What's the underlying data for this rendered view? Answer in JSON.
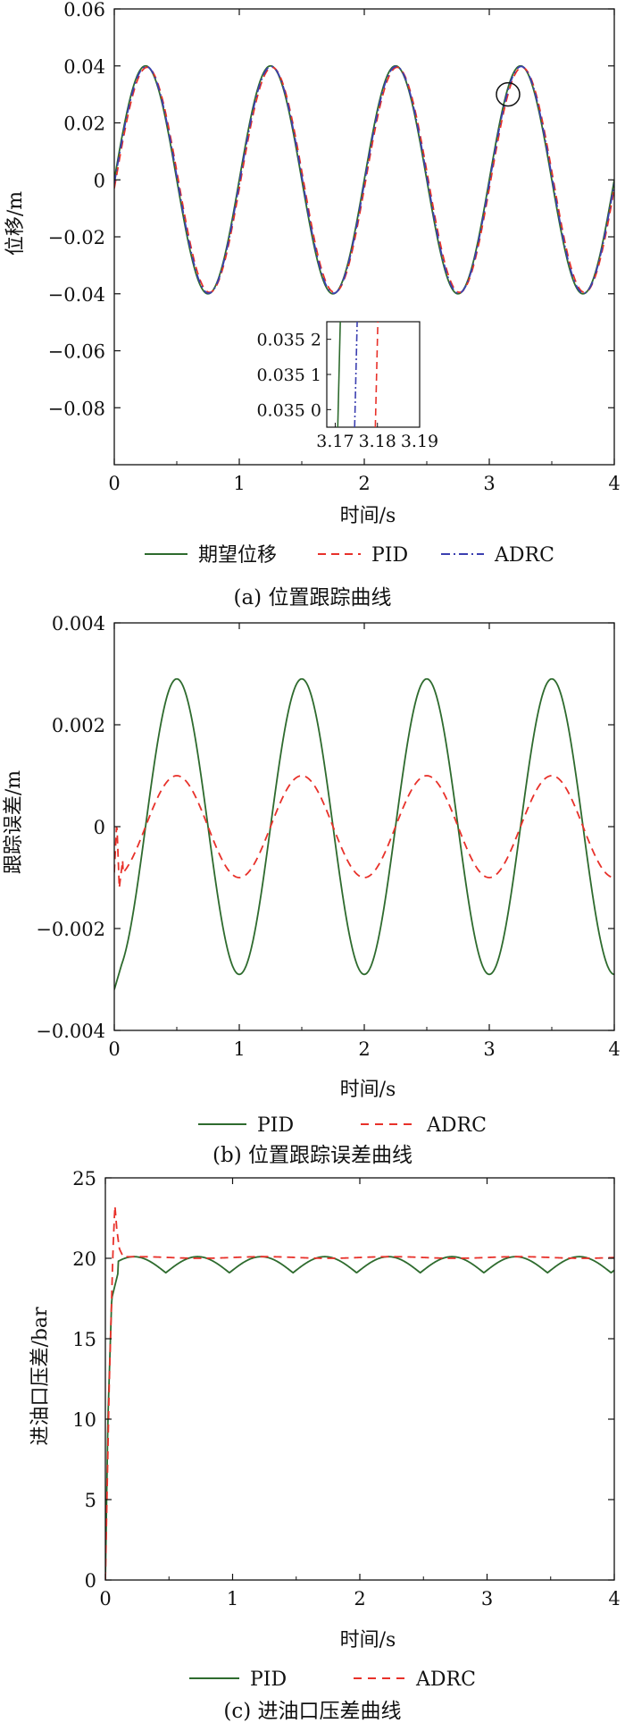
{
  "chart_data": [
    {
      "type": "line",
      "caption": "(a) 位置跟踪曲线",
      "xlabel": "时间/s",
      "ylabel": "位移/m",
      "xlim": [
        0,
        4
      ],
      "ylim": [
        -0.1,
        0.06
      ],
      "xticks": [
        "0",
        "1",
        "2",
        "3",
        "4"
      ],
      "yticks": [
        "0.06",
        "0.04",
        "0.02",
        "0",
        "−0.02",
        "−0.04",
        "−0.06",
        "−0.08"
      ],
      "ytick_values": [
        0.06,
        0.04,
        0.02,
        0,
        -0.02,
        -0.04,
        -0.06,
        -0.08
      ],
      "series": [
        {
          "name": "期望位移",
          "color": "#2e6b2e",
          "style": "solid",
          "shape": "sine",
          "amplitude": 0.04,
          "period": 1.0,
          "offset": 0
        },
        {
          "name": "PID",
          "color": "#e8312a",
          "style": "dashed",
          "shape": "sine",
          "amplitude": 0.0395,
          "period": 1.0,
          "phase_shift": 0.012,
          "offset": 0
        },
        {
          "name": "ADRC",
          "color": "#3b3fb0",
          "style": "dashdot",
          "shape": "sine",
          "amplitude": 0.0398,
          "period": 1.0,
          "phase_shift": 0.005,
          "offset": 0
        }
      ],
      "legend_position": "bottom",
      "annotation": {
        "type": "circle",
        "x": 3.15,
        "y": 0.03
      },
      "inset": {
        "xticks": [
          "3.17",
          "3.18",
          "3.19"
        ],
        "xtick_values": [
          3.17,
          3.18,
          3.19
        ],
        "yticks": [
          "0.035 2",
          "0.035 1",
          "0.035 0"
        ],
        "ytick_values": [
          0.03552,
          0.03551,
          0.0355
        ],
        "xlim": [
          3.168,
          3.19
        ],
        "ylim": [
          0.035495,
          0.035525
        ],
        "lines": [
          {
            "series": "期望位移",
            "x_start": 3.1706,
            "x_end": 3.1712
          },
          {
            "series": "ADRC",
            "x_start": 3.1746,
            "x_end": 3.1752
          },
          {
            "series": "PID",
            "x_start": 3.1795,
            "x_end": 3.1801
          }
        ]
      }
    },
    {
      "type": "line",
      "caption": "(b) 位置跟踪误差曲线",
      "xlabel": "时间/s",
      "ylabel": "跟踪误差/m",
      "xlim": [
        0,
        4
      ],
      "ylim": [
        -0.004,
        0.004
      ],
      "xticks": [
        "0",
        "1",
        "2",
        "3",
        "4"
      ],
      "yticks": [
        "0.004",
        "0.002",
        "0",
        "−0.002",
        "−0.004"
      ],
      "ytick_values": [
        0.004,
        0.002,
        0,
        -0.002,
        -0.004
      ],
      "series": [
        {
          "name": "PID",
          "color": "#2e6b2e",
          "style": "solid",
          "shape": "neg_cos",
          "amplitude": 0.0029,
          "period": 1.0,
          "offset": 0,
          "initial_value": -0.0032
        },
        {
          "name": "ADRC",
          "color": "#e8312a",
          "style": "dashed",
          "shape": "neg_cos",
          "amplitude": 0.001,
          "period": 1.0,
          "offset": 0,
          "initial_transient": [
            [
              0,
              -0.0009
            ],
            [
              0.02,
              0.0001
            ],
            [
              0.04,
              -0.0012
            ],
            [
              0.07,
              -0.0006
            ]
          ]
        }
      ],
      "legend_position": "bottom"
    },
    {
      "type": "line",
      "caption": "(c) 进油口压差曲线",
      "xlabel": "时间/s",
      "ylabel": "进油口压差/bar",
      "xlim": [
        0,
        4
      ],
      "ylim": [
        0,
        25
      ],
      "xticks": [
        "0",
        "1",
        "2",
        "3",
        "4"
      ],
      "yticks": [
        "25",
        "20",
        "15",
        "10",
        "5",
        "0"
      ],
      "ytick_values": [
        25,
        20,
        15,
        10,
        5,
        0
      ],
      "series": [
        {
          "name": "PID",
          "color": "#2e6b2e",
          "style": "solid",
          "shape": "abs_sin_ripple",
          "base": 19.1,
          "ripple": 1.0,
          "period": 1.0,
          "rise": [
            [
              0,
              0
            ],
            [
              0.02,
              10
            ],
            [
              0.05,
              17.5
            ],
            [
              0.1,
              19.1
            ]
          ]
        },
        {
          "name": "ADRC",
          "color": "#e8312a",
          "style": "dashed",
          "shape": "flat",
          "base": 20.05,
          "ripple": 0.05,
          "period": 1.0,
          "rise": [
            [
              0,
              0
            ],
            [
              0.03,
              12
            ],
            [
              0.06,
              20.5
            ],
            [
              0.075,
              23.3
            ],
            [
              0.09,
              21.8
            ],
            [
              0.11,
              20.6
            ],
            [
              0.14,
              20.1
            ]
          ]
        }
      ],
      "legend_position": "bottom"
    }
  ]
}
